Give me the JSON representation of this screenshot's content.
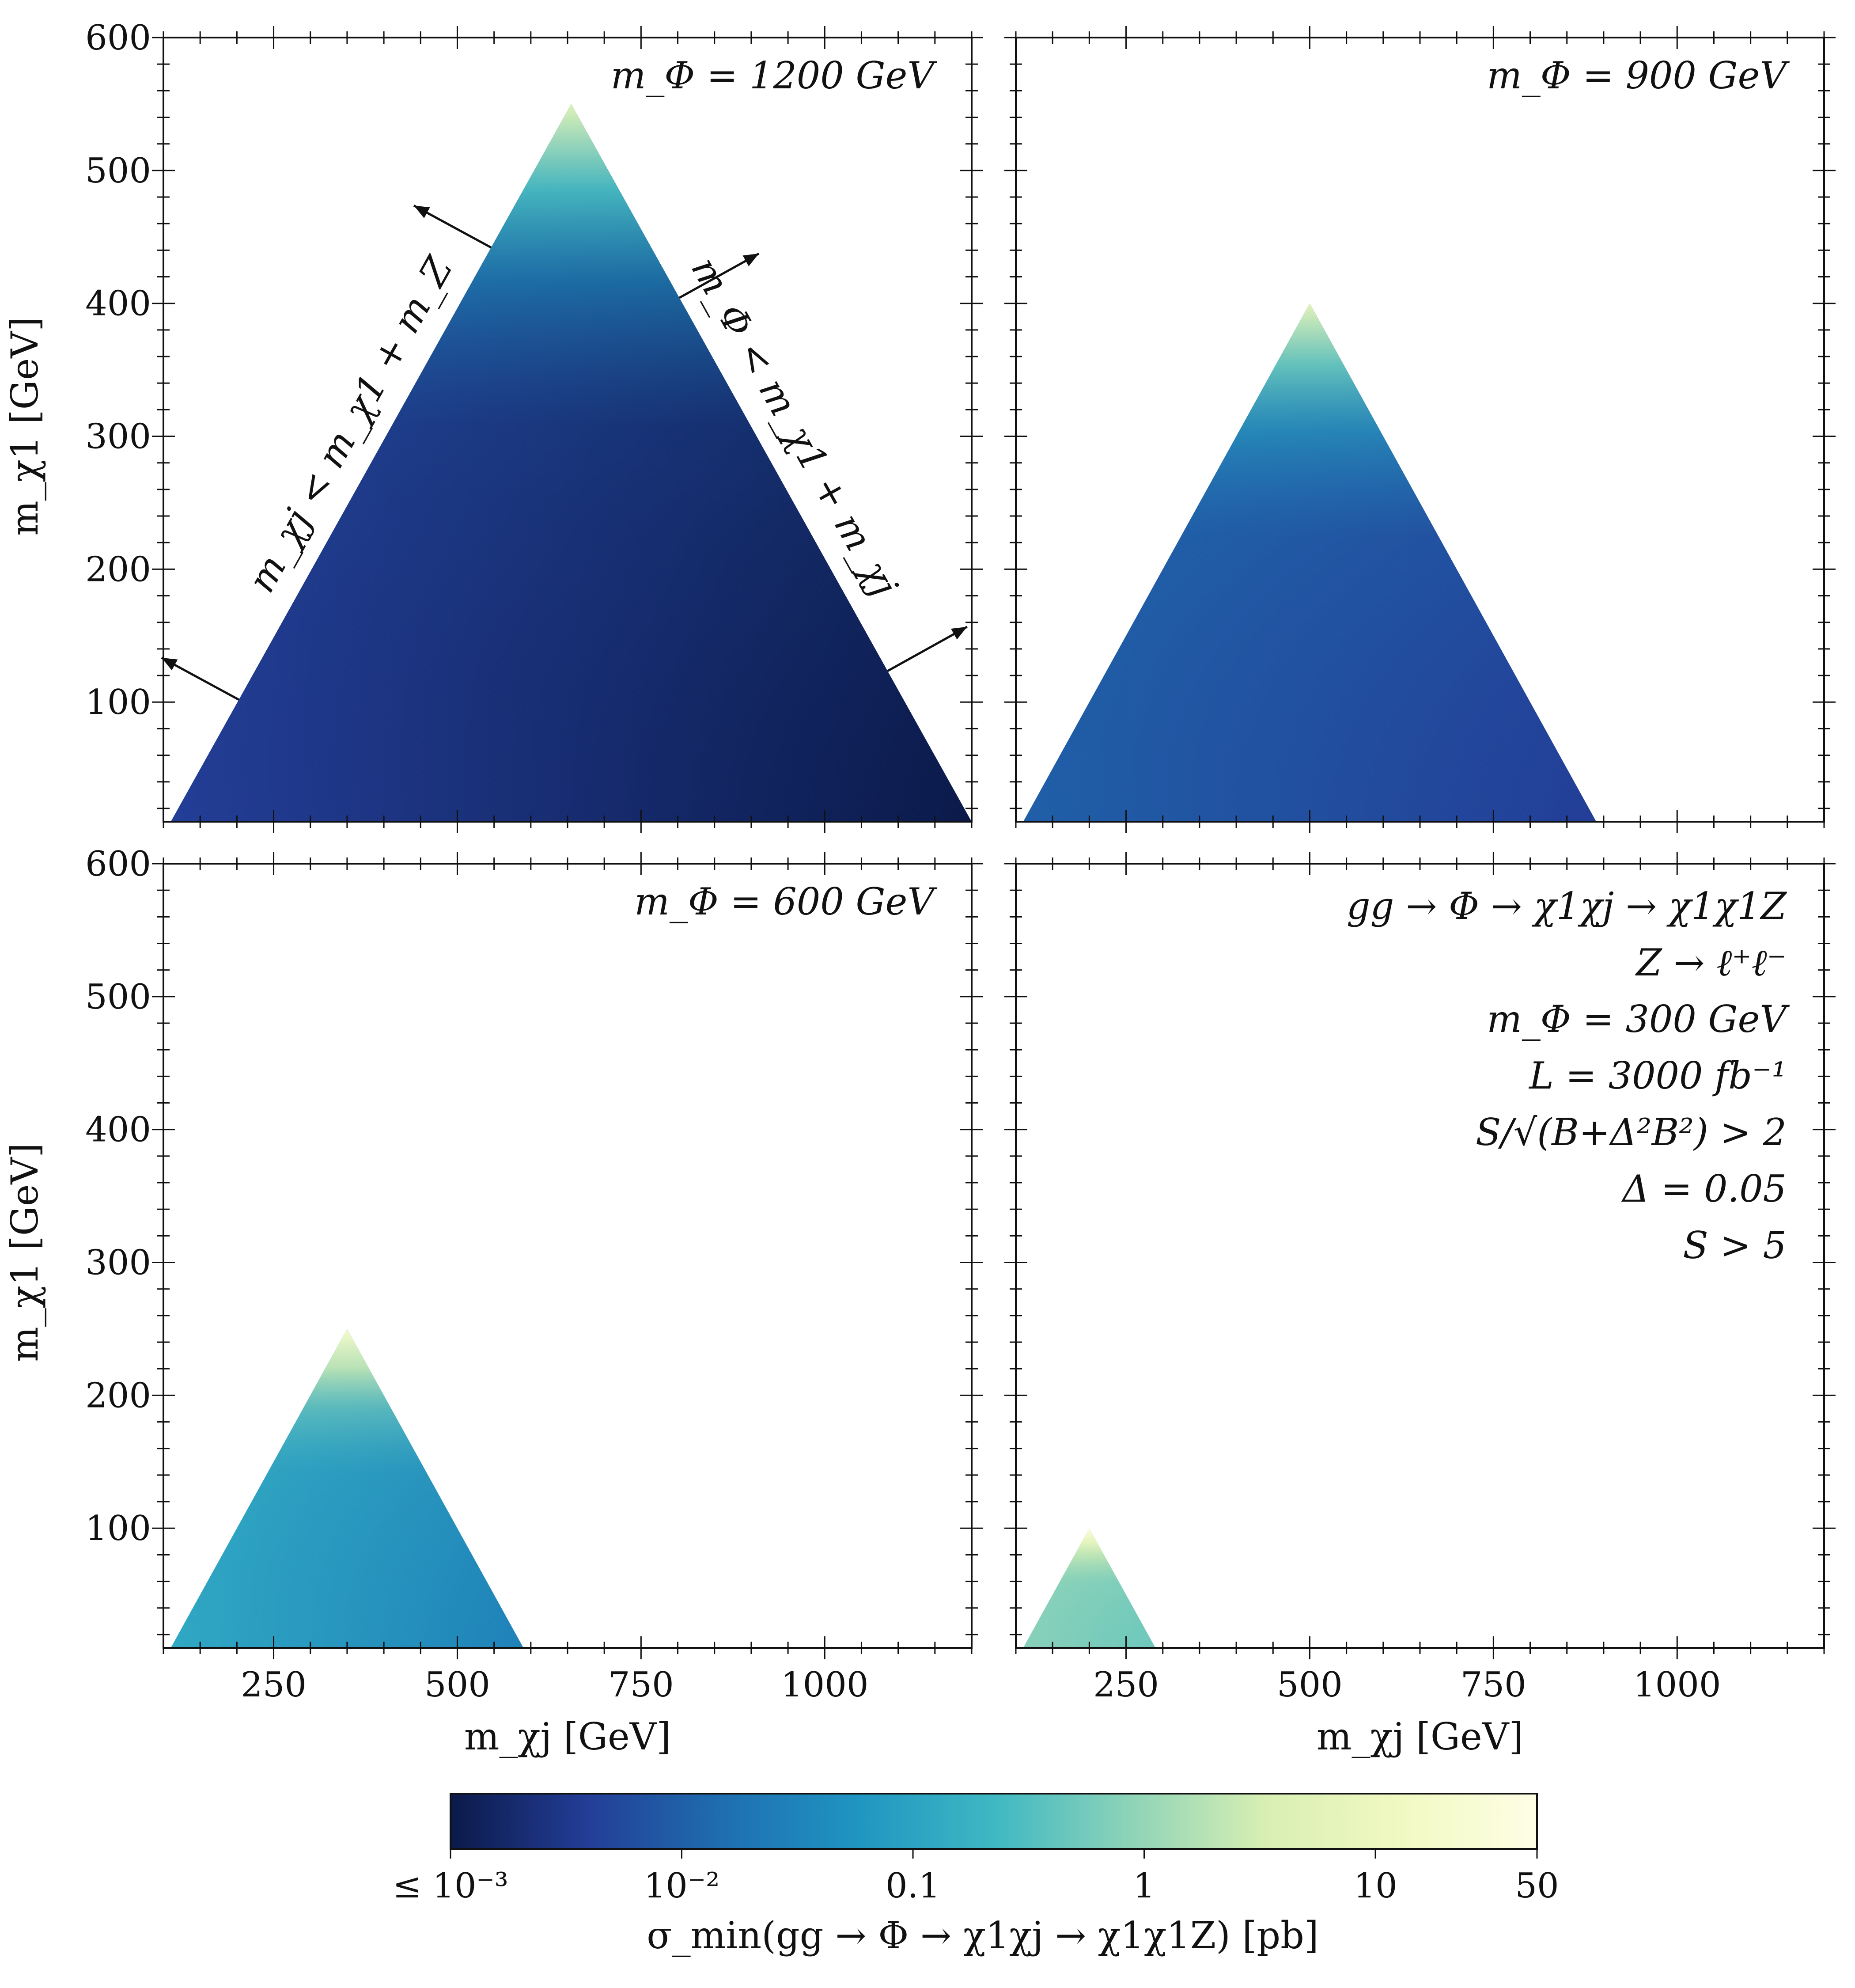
{
  "chart_data": {
    "type": "heatmap",
    "layout": "2x2 panels, shared axes, shared colorbar",
    "x_axis": {
      "label": "m_χj [GeV]",
      "lim": [
        100,
        1200
      ],
      "ticks": [
        250,
        500,
        750,
        1000
      ],
      "tick_labels": [
        "250",
        "500",
        "750",
        "1000"
      ]
    },
    "y_axis": {
      "label": "m_χ1 [GeV]",
      "lim": [
        10,
        600
      ],
      "ticks": [
        100,
        200,
        300,
        400,
        500,
        600
      ],
      "tick_labels": [
        "100",
        "200",
        "300",
        "400",
        "500",
        "600"
      ]
    },
    "panels": [
      {
        "id": "top-left",
        "label": "m_Φ = 1200 GeV",
        "m_phi": 1200,
        "region_vertices": [
          [
            110,
            10
          ],
          [
            1200,
            10
          ],
          [
            655,
            550
          ]
        ],
        "corner_values_pb": {
          "left_base": 0.004,
          "right_base": 0.001,
          "apex": 5
        },
        "show_x_ticklabels": false,
        "show_y_ticklabels": true,
        "boundary_annotations": [
          {
            "text": "m_χj < m_χ1 + m_Z",
            "side": "left"
          },
          {
            "text": "m_Φ < m_χ1 + m_χj",
            "side": "right"
          }
        ]
      },
      {
        "id": "top-right",
        "label": "m_Φ = 900 GeV",
        "m_phi": 900,
        "region_vertices": [
          [
            110,
            10
          ],
          [
            890,
            10
          ],
          [
            500,
            400
          ]
        ],
        "corner_values_pb": {
          "left_base": 0.01,
          "right_base": 0.004,
          "apex": 6
        },
        "show_x_ticklabels": false,
        "show_y_ticklabels": false
      },
      {
        "id": "bottom-left",
        "label": "m_Φ = 600 GeV",
        "m_phi": 600,
        "region_vertices": [
          [
            110,
            10
          ],
          [
            590,
            10
          ],
          [
            350,
            250
          ]
        ],
        "corner_values_pb": {
          "left_base": 0.12,
          "right_base": 0.03,
          "apex": 20
        },
        "show_x_ticklabels": true,
        "show_y_ticklabels": true
      },
      {
        "id": "bottom-right",
        "label": "",
        "m_phi": 300,
        "region_vertices": [
          [
            110,
            10
          ],
          [
            290,
            10
          ],
          [
            200,
            100
          ]
        ],
        "corner_values_pb": {
          "left_base": 0.8,
          "right_base": 0.5,
          "apex": 40
        },
        "show_x_ticklabels": true,
        "show_y_ticklabels": false,
        "info_lines": [
          "gg → Φ → χ1χj → χ1χ1Z",
          "Z → ℓ⁺ℓ⁻",
          "m_Φ = 300 GeV",
          "L = 3000 fb⁻¹",
          "S/√(B+Δ²B²) > 2",
          "Δ = 0.05",
          "S > 5"
        ]
      }
    ],
    "colorbar": {
      "label": "σ_min(gg → Φ → χ1χj → χ1χ1Z) [pb]",
      "scale": "log",
      "range": [
        0.001,
        50
      ],
      "ticks": [
        0.001,
        0.01,
        0.1,
        1,
        10,
        50
      ],
      "tick_labels": [
        "≤ 10⁻³",
        "10⁻²",
        "0.1",
        "1",
        "10",
        "50"
      ],
      "colormap": "YlGnBu_r",
      "colormap_stops": [
        "#0b1a4a",
        "#233d96",
        "#1f6eb0",
        "#1f95c2",
        "#3fb8c3",
        "#8dd3b8",
        "#d8efb3",
        "#f1f9c2",
        "#fefee5"
      ]
    }
  }
}
